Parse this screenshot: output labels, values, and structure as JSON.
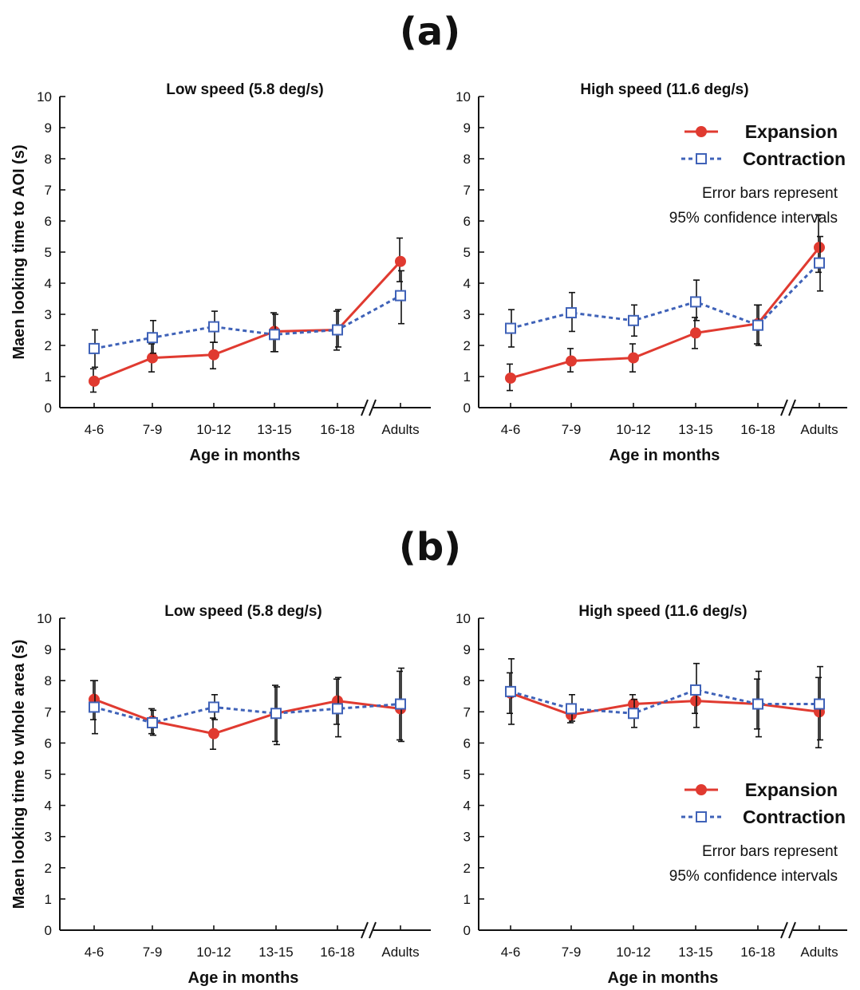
{
  "panels": {
    "a": "(a)",
    "b": "(b)"
  },
  "colors": {
    "expansion": "#e03a30",
    "contraction": "#3f62b8",
    "axis": "#111111"
  },
  "chart_data": [
    {
      "type": "line",
      "panel": "a",
      "title": "Low speed (5.8 deg/s)",
      "xlabel": "Age in months",
      "ylabel": "Maen looking time to AOI (s)",
      "ylim": [
        0,
        10
      ],
      "yticks": [
        "0",
        "1",
        "2",
        "3",
        "4",
        "5",
        "6",
        "7",
        "8",
        "9",
        "10"
      ],
      "categories": [
        "4-6",
        "7-9",
        "10-12",
        "13-15",
        "16-18",
        "Adults"
      ],
      "axis_break_between": [
        "16-18",
        "Adults"
      ],
      "series": [
        {
          "name": "Expansion",
          "values": [
            0.85,
            1.6,
            1.7,
            2.45,
            2.5,
            4.7
          ],
          "err_low": [
            0.5,
            1.15,
            1.25,
            1.8,
            1.85,
            4.05
          ],
          "err_high": [
            1.25,
            2.05,
            2.1,
            3.05,
            3.1,
            5.45
          ]
        },
        {
          "name": "Contraction",
          "values": [
            1.9,
            2.25,
            2.6,
            2.35,
            2.5,
            3.6
          ],
          "err_low": [
            1.3,
            1.75,
            2.1,
            1.8,
            1.95,
            2.7
          ],
          "err_high": [
            2.5,
            2.8,
            3.1,
            3.0,
            3.15,
            4.4
          ]
        }
      ],
      "legend": null
    },
    {
      "type": "line",
      "panel": "a",
      "title": "High speed (11.6 deg/s)",
      "xlabel": "Age in months",
      "ylabel": "",
      "ylim": [
        0,
        10
      ],
      "yticks": [
        "0",
        "1",
        "2",
        "3",
        "4",
        "5",
        "6",
        "7",
        "8",
        "9",
        "10"
      ],
      "categories": [
        "4-6",
        "7-9",
        "10-12",
        "13-15",
        "16-18",
        "Adults"
      ],
      "axis_break_between": [
        "16-18",
        "Adults"
      ],
      "series": [
        {
          "name": "Expansion",
          "values": [
            0.95,
            1.5,
            1.6,
            2.4,
            2.7,
            5.15
          ],
          "err_low": [
            0.55,
            1.15,
            1.15,
            1.9,
            2.05,
            4.35
          ],
          "err_high": [
            1.4,
            1.9,
            2.05,
            2.9,
            3.3,
            6.2
          ]
        },
        {
          "name": "Contraction",
          "values": [
            2.55,
            3.05,
            2.8,
            3.4,
            2.65,
            4.65
          ],
          "err_low": [
            1.95,
            2.45,
            2.3,
            2.8,
            2.0,
            3.75
          ],
          "err_high": [
            3.15,
            3.7,
            3.3,
            4.1,
            3.3,
            5.5
          ]
        }
      ],
      "legend": {
        "placement": "top-right",
        "entries": [
          "Expansion",
          "Contraction"
        ],
        "note": [
          "Error bars represent",
          "95% confidence intervals"
        ]
      }
    },
    {
      "type": "line",
      "panel": "b",
      "title": "Low speed (5.8 deg/s)",
      "xlabel": "Age in months",
      "ylabel": "Maen looking time to whole area (s)",
      "ylim": [
        0,
        10
      ],
      "yticks": [
        "0",
        "1",
        "2",
        "3",
        "4",
        "5",
        "6",
        "7",
        "8",
        "9",
        "10"
      ],
      "categories": [
        "4-6",
        "7-9",
        "10-12",
        "13-15",
        "16-18",
        "Adults"
      ],
      "axis_break_between": [
        "16-18",
        "Adults"
      ],
      "series": [
        {
          "name": "Expansion",
          "values": [
            7.4,
            6.7,
            6.3,
            6.95,
            7.35,
            7.1
          ],
          "err_low": [
            6.75,
            6.3,
            5.8,
            6.05,
            6.6,
            6.1
          ],
          "err_high": [
            8.0,
            7.1,
            6.8,
            7.85,
            8.05,
            8.3
          ]
        },
        {
          "name": "Contraction",
          "values": [
            7.15,
            6.65,
            7.15,
            6.95,
            7.1,
            7.25
          ],
          "err_low": [
            6.3,
            6.25,
            6.75,
            5.95,
            6.2,
            6.05
          ],
          "err_high": [
            8.0,
            7.05,
            7.55,
            7.8,
            8.1,
            8.4
          ]
        }
      ],
      "legend": null
    },
    {
      "type": "line",
      "panel": "b",
      "title": "High speed (11.6 deg/s)",
      "xlabel": "Age in months",
      "ylabel": "",
      "ylim": [
        0,
        10
      ],
      "yticks": [
        "0",
        "1",
        "2",
        "3",
        "4",
        "5",
        "6",
        "7",
        "8",
        "9",
        "10"
      ],
      "categories": [
        "4-6",
        "7-9",
        "10-12",
        "13-15",
        "16-18",
        "Adults"
      ],
      "axis_break_between": [
        "16-18",
        "Adults"
      ],
      "series": [
        {
          "name": "Expansion",
          "values": [
            7.6,
            6.9,
            7.25,
            7.35,
            7.25,
            7.0
          ],
          "err_low": [
            6.95,
            6.65,
            6.95,
            6.95,
            6.45,
            5.85
          ],
          "err_high": [
            8.25,
            7.15,
            7.55,
            7.8,
            8.05,
            8.1
          ]
        },
        {
          "name": "Contraction",
          "values": [
            7.65,
            7.1,
            6.95,
            7.7,
            7.25,
            7.25
          ],
          "err_low": [
            6.6,
            6.7,
            6.5,
            6.5,
            6.2,
            6.1
          ],
          "err_high": [
            8.7,
            7.55,
            7.4,
            8.55,
            8.3,
            8.45
          ]
        }
      ],
      "legend": {
        "placement": "bottom-right",
        "entries": [
          "Expansion",
          "Contraction"
        ],
        "note": [
          "Error bars represent",
          "95% confidence intervals"
        ]
      }
    }
  ]
}
